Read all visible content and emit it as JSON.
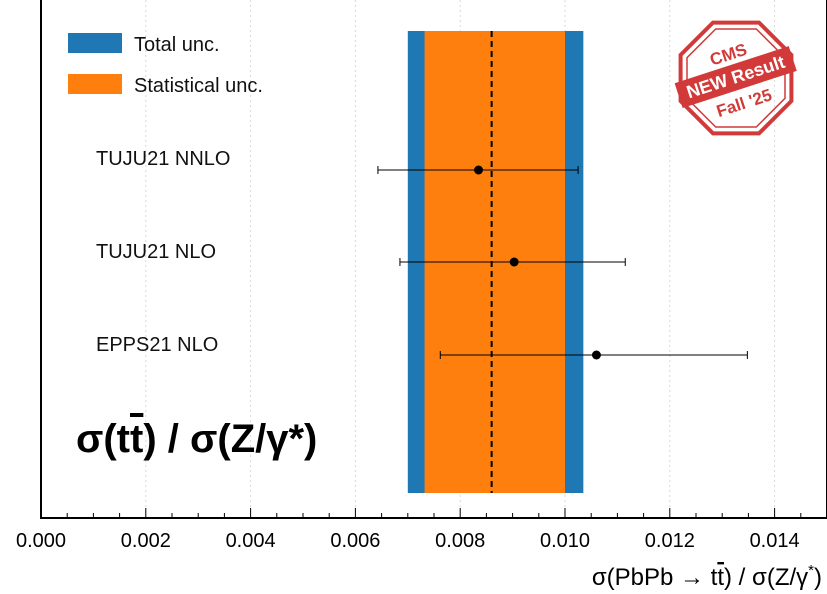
{
  "chart_data": {
    "type": "scatter",
    "title": "",
    "xlabel_main": "σ(PbPb → t",
    "xlabel_tbar": "t",
    "xlabel_rest": ") / σ(Z/γ",
    "xlabel_star": "*",
    "xlabel_close": ")",
    "xlim": [
      0.0,
      0.015
    ],
    "xticks": [
      {
        "value": 0.0,
        "label": "0.000"
      },
      {
        "value": 0.002,
        "label": "0.002"
      },
      {
        "value": 0.004,
        "label": "0.004"
      },
      {
        "value": 0.006,
        "label": "0.006"
      },
      {
        "value": 0.008,
        "label": "0.008"
      },
      {
        "value": 0.01,
        "label": "0.010"
      },
      {
        "value": 0.012,
        "label": "0.012"
      },
      {
        "value": 0.014,
        "label": "0.014"
      }
    ],
    "grid": "vertical",
    "measurement": {
      "central": 0.0086,
      "total_band": [
        0.007,
        0.01035
      ],
      "stat_band": [
        0.00732,
        0.01
      ]
    },
    "predictions": [
      {
        "label": "TUJU21 NNLO",
        "value": 0.00835,
        "low": 0.00643,
        "high": 0.01025
      },
      {
        "label": "TUJU21 NLO",
        "value": 0.00903,
        "low": 0.00685,
        "high": 0.01115
      },
      {
        "label": "EPPS21 NLO",
        "value": 0.0106,
        "low": 0.00762,
        "high": 0.01348
      }
    ],
    "legend": {
      "placement": "top-left",
      "entries": [
        {
          "label": "Total unc.",
          "color": "#1f77b4"
        },
        {
          "label": "Statistical unc.",
          "color": "#ff7f0e"
        }
      ]
    },
    "annotation": {
      "prefix": "σ(t",
      "tbar": "t",
      "suffix": ") / σ(Z/γ*)"
    },
    "colors": {
      "total": "#1f77b4",
      "stat": "#ff7f0e",
      "stamp": "#d23a3a"
    }
  },
  "stamp": {
    "line1": "CMS",
    "line2": "NEW Result",
    "line3": "Fall '25"
  }
}
